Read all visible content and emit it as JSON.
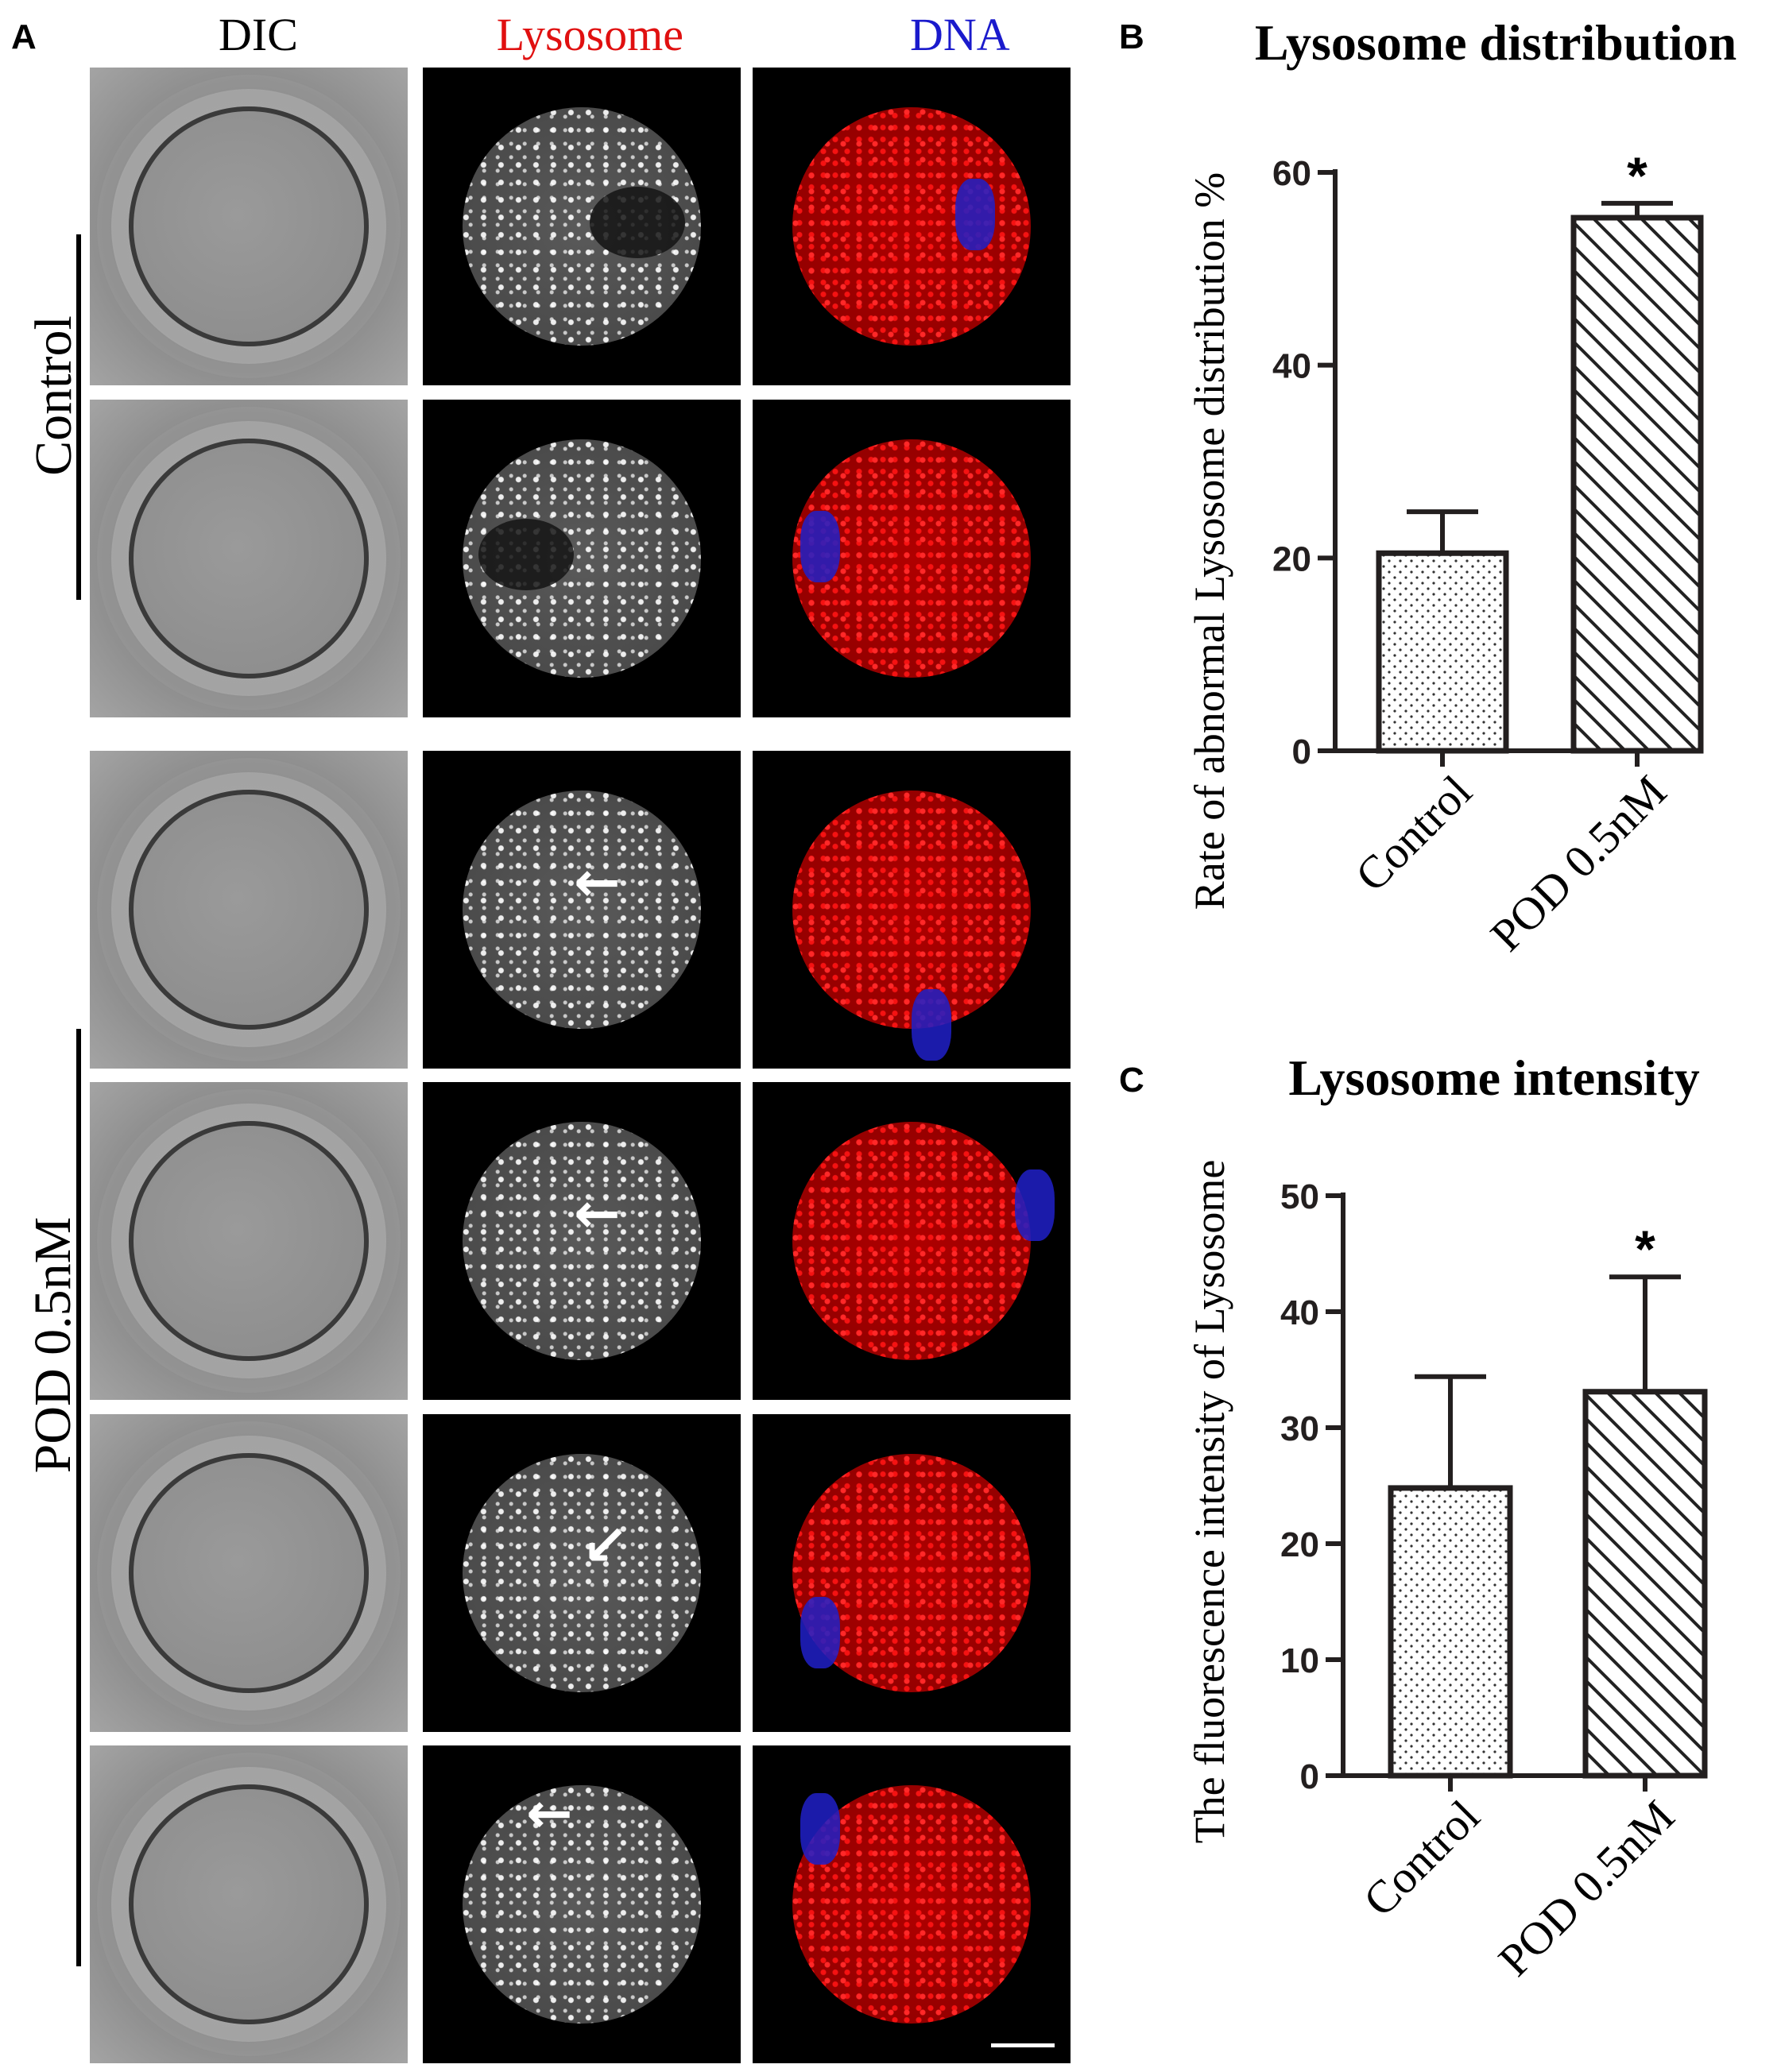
{
  "panel_a": {
    "letter": "A",
    "columns": [
      "DIC",
      "Lysosome",
      "DNA"
    ],
    "colors": {
      "lysosome": "#e01010",
      "dna": "#1a1acc"
    },
    "groups": [
      {
        "label": "Control",
        "rows": 2
      },
      {
        "label": "POD 0.5nM",
        "rows": 4
      }
    ]
  },
  "panel_b": {
    "letter": "B"
  },
  "panel_c": {
    "letter": "C"
  },
  "chart_data": [
    {
      "type": "bar",
      "title": "Lysosome distribution",
      "ylabel": "Rate of abnormal Lysosome distribution %",
      "xlabel": "",
      "categories": [
        "Control",
        "POD 0.5nM"
      ],
      "values": [
        20.5,
        55.3
      ],
      "error_upper": [
        24.8,
        56.8
      ],
      "significance": [
        "",
        "*"
      ],
      "ylim": [
        0,
        60
      ],
      "yticks": [
        0,
        20,
        40,
        60
      ],
      "patterns": [
        "dots",
        "diagonal-hatch"
      ],
      "grid": false
    },
    {
      "type": "bar",
      "title": "Lysosome intensity",
      "ylabel": "The fluorescence intensity of Lysosome",
      "xlabel": "",
      "categories": [
        "Control",
        "POD 0.5nM"
      ],
      "values": [
        24.8,
        33.1
      ],
      "error_upper": [
        34.4,
        43.0
      ],
      "significance": [
        "",
        "*"
      ],
      "ylim": [
        0,
        50
      ],
      "yticks": [
        0,
        10,
        20,
        30,
        40,
        50
      ],
      "patterns": [
        "dots",
        "diagonal-hatch"
      ],
      "grid": false
    }
  ]
}
